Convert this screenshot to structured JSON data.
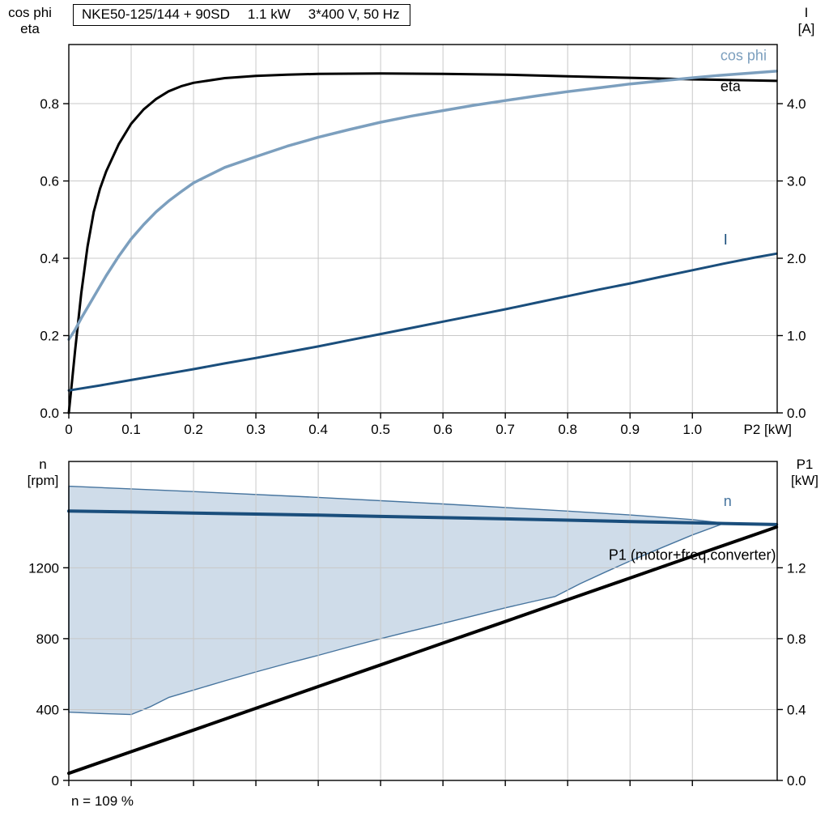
{
  "header": {
    "model": "NKE50-125/144 + 90SD",
    "power": "1.1 kW",
    "voltage": "3*400 V, 50 Hz"
  },
  "footer": {
    "note": "n = 109 %"
  },
  "axis_labels": {
    "upper_left_1": "cos phi",
    "upper_left_2": "eta",
    "upper_right_1": "I",
    "upper_right_2": "[A]",
    "lower_left_1": "n",
    "lower_left_2": "[rpm]",
    "lower_right_1": "P1",
    "lower_right_2": "[kW]"
  },
  "colors": {
    "eta": "#000000",
    "cos_phi": "#7c9fbe",
    "current": "#1a4e7c",
    "speed": "#1a4e7c",
    "p1": "#000000",
    "band_fill": "#cfdce9",
    "band_stroke": "#46749e",
    "grid": "#c8c8c8"
  },
  "chart_data": [
    {
      "id": "top",
      "type": "line",
      "x_axis": {
        "label": "P2 [kW]",
        "range": [
          0,
          1.136
        ],
        "show_tick_labels": true,
        "ticks": [
          {
            "v": 0,
            "t": "0"
          },
          {
            "v": 0.1,
            "t": "0.1"
          },
          {
            "v": 0.2,
            "t": "0.2"
          },
          {
            "v": 0.3,
            "t": "0.3"
          },
          {
            "v": 0.4,
            "t": "0.4"
          },
          {
            "v": 0.5,
            "t": "0.5"
          },
          {
            "v": 0.6,
            "t": "0.6"
          },
          {
            "v": 0.7,
            "t": "0.7"
          },
          {
            "v": 0.8,
            "t": "0.8"
          },
          {
            "v": 0.9,
            "t": "0.9"
          },
          {
            "v": 1.0,
            "t": "1.0"
          }
        ]
      },
      "y_left": {
        "label": "cos phi / eta",
        "range": [
          0,
          0.953
        ],
        "ticks": [
          {
            "v": 0,
            "t": "0.0"
          },
          {
            "v": 0.2,
            "t": "0.2"
          },
          {
            "v": 0.4,
            "t": "0.4"
          },
          {
            "v": 0.6,
            "t": "0.6"
          },
          {
            "v": 0.8,
            "t": "0.8"
          }
        ]
      },
      "y_right": {
        "label": "I [A]",
        "range": [
          0,
          4.765
        ],
        "ticks": [
          {
            "v": 0,
            "t": "0.0"
          },
          {
            "v": 1,
            "t": "1.0"
          },
          {
            "v": 2,
            "t": "2.0"
          },
          {
            "v": 3,
            "t": "3.0"
          },
          {
            "v": 4,
            "t": "4.0"
          }
        ]
      },
      "series": [
        {
          "name": "eta",
          "axis": "left",
          "color": "#000000",
          "width": 3,
          "points": [
            [
              0,
              0
            ],
            [
              0.005,
              0.08
            ],
            [
              0.01,
              0.16
            ],
            [
              0.02,
              0.31
            ],
            [
              0.03,
              0.43
            ],
            [
              0.04,
              0.52
            ],
            [
              0.05,
              0.58
            ],
            [
              0.06,
              0.625
            ],
            [
              0.08,
              0.695
            ],
            [
              0.1,
              0.748
            ],
            [
              0.12,
              0.785
            ],
            [
              0.14,
              0.812
            ],
            [
              0.16,
              0.832
            ],
            [
              0.18,
              0.845
            ],
            [
              0.2,
              0.854
            ],
            [
              0.25,
              0.866
            ],
            [
              0.3,
              0.872
            ],
            [
              0.35,
              0.875
            ],
            [
              0.4,
              0.877
            ],
            [
              0.5,
              0.878
            ],
            [
              0.6,
              0.877
            ],
            [
              0.7,
              0.875
            ],
            [
              0.8,
              0.871
            ],
            [
              0.9,
              0.867
            ],
            [
              1.0,
              0.863
            ],
            [
              1.1,
              0.86
            ],
            [
              1.135,
              0.859
            ]
          ],
          "label": {
            "text": "eta",
            "x": 1.045,
            "y": 0.833,
            "color": "#000000",
            "anchor": "start"
          }
        },
        {
          "name": "cos-phi",
          "axis": "left",
          "color": "#7c9fbe",
          "width": 3.5,
          "points": [
            [
              0,
              0.19
            ],
            [
              0.01,
              0.215
            ],
            [
              0.02,
              0.245
            ],
            [
              0.04,
              0.3
            ],
            [
              0.06,
              0.355
            ],
            [
              0.08,
              0.405
            ],
            [
              0.1,
              0.45
            ],
            [
              0.12,
              0.487
            ],
            [
              0.14,
              0.52
            ],
            [
              0.16,
              0.548
            ],
            [
              0.18,
              0.572
            ],
            [
              0.2,
              0.595
            ],
            [
              0.25,
              0.635
            ],
            [
              0.3,
              0.663
            ],
            [
              0.35,
              0.69
            ],
            [
              0.4,
              0.713
            ],
            [
              0.45,
              0.733
            ],
            [
              0.5,
              0.752
            ],
            [
              0.55,
              0.768
            ],
            [
              0.6,
              0.782
            ],
            [
              0.65,
              0.796
            ],
            [
              0.7,
              0.808
            ],
            [
              0.75,
              0.82
            ],
            [
              0.8,
              0.831
            ],
            [
              0.85,
              0.841
            ],
            [
              0.9,
              0.851
            ],
            [
              0.95,
              0.859
            ],
            [
              1.0,
              0.867
            ],
            [
              1.05,
              0.874
            ],
            [
              1.1,
              0.88
            ],
            [
              1.135,
              0.884
            ]
          ],
          "label": {
            "text": "cos phi",
            "x": 1.045,
            "y": 0.912,
            "color": "#7c9fbe",
            "anchor": "start"
          }
        },
        {
          "name": "current-I",
          "axis": "right",
          "color": "#1a4e7c",
          "width": 3,
          "points": [
            [
              0,
              0.29
            ],
            [
              0.05,
              0.355
            ],
            [
              0.1,
              0.425
            ],
            [
              0.15,
              0.495
            ],
            [
              0.2,
              0.565
            ],
            [
              0.25,
              0.64
            ],
            [
              0.3,
              0.71
            ],
            [
              0.35,
              0.785
            ],
            [
              0.4,
              0.86
            ],
            [
              0.45,
              0.94
            ],
            [
              0.5,
              1.02
            ],
            [
              0.55,
              1.1
            ],
            [
              0.6,
              1.18
            ],
            [
              0.65,
              1.26
            ],
            [
              0.7,
              1.34
            ],
            [
              0.75,
              1.425
            ],
            [
              0.8,
              1.51
            ],
            [
              0.85,
              1.595
            ],
            [
              0.9,
              1.675
            ],
            [
              0.95,
              1.76
            ],
            [
              1.0,
              1.845
            ],
            [
              1.05,
              1.93
            ],
            [
              1.1,
              2.01
            ],
            [
              1.135,
              2.06
            ]
          ],
          "label": {
            "text": "I",
            "x": 1.05,
            "y": 2.18,
            "color": "#1a4e7c",
            "anchor": "start"
          }
        }
      ]
    },
    {
      "id": "bottom",
      "type": "line",
      "x_axis": {
        "label": "",
        "range": [
          0,
          1.136
        ],
        "show_tick_labels": false,
        "ticks": [
          {
            "v": 0,
            "t": ""
          },
          {
            "v": 0.1,
            "t": ""
          },
          {
            "v": 0.2,
            "t": ""
          },
          {
            "v": 0.3,
            "t": ""
          },
          {
            "v": 0.4,
            "t": ""
          },
          {
            "v": 0.5,
            "t": ""
          },
          {
            "v": 0.6,
            "t": ""
          },
          {
            "v": 0.7,
            "t": ""
          },
          {
            "v": 0.8,
            "t": ""
          },
          {
            "v": 0.9,
            "t": ""
          },
          {
            "v": 1.0,
            "t": ""
          }
        ]
      },
      "y_left": {
        "label": "n [rpm]",
        "range": [
          0,
          1800
        ],
        "ticks": [
          {
            "v": 0,
            "t": "0"
          },
          {
            "v": 400,
            "t": "400"
          },
          {
            "v": 800,
            "t": "800"
          },
          {
            "v": 1200,
            "t": "1200"
          }
        ]
      },
      "y_right": {
        "label": "P1 [kW]",
        "range": [
          0,
          1.8
        ],
        "ticks": [
          {
            "v": 0,
            "t": "0.0"
          },
          {
            "v": 0.4,
            "t": "0.4"
          },
          {
            "v": 0.8,
            "t": "0.8"
          },
          {
            "v": 1.2,
            "t": "1.2"
          }
        ]
      },
      "band": {
        "name": "speed-control-range",
        "fill": "#cfdce9",
        "stroke": "#46749e",
        "upper": [
          [
            0,
            1660
          ],
          [
            0.2,
            1630
          ],
          [
            0.4,
            1597
          ],
          [
            0.6,
            1560
          ],
          [
            0.8,
            1520
          ],
          [
            0.9,
            1498
          ],
          [
            1.0,
            1472
          ],
          [
            1.05,
            1452
          ]
        ],
        "lower": [
          [
            0,
            385
          ],
          [
            0.05,
            378
          ],
          [
            0.1,
            372
          ],
          [
            0.13,
            415
          ],
          [
            0.16,
            468
          ],
          [
            0.2,
            510
          ],
          [
            0.25,
            562
          ],
          [
            0.3,
            612
          ],
          [
            0.35,
            660
          ],
          [
            0.4,
            706
          ],
          [
            0.45,
            754
          ],
          [
            0.5,
            800
          ],
          [
            0.55,
            844
          ],
          [
            0.6,
            886
          ],
          [
            0.65,
            930
          ],
          [
            0.7,
            974
          ],
          [
            0.75,
            1014
          ],
          [
            0.78,
            1038
          ],
          [
            0.82,
            1110
          ],
          [
            0.86,
            1175
          ],
          [
            0.9,
            1238
          ],
          [
            0.95,
            1312
          ],
          [
            1.0,
            1385
          ],
          [
            1.05,
            1450
          ]
        ]
      },
      "series": [
        {
          "name": "speed-n",
          "axis": "left",
          "color": "#1a4e7c",
          "width": 4,
          "points": [
            [
              0,
              1520
            ],
            [
              0.1,
              1515
            ],
            [
              0.2,
              1509
            ],
            [
              0.3,
              1503
            ],
            [
              0.4,
              1497
            ],
            [
              0.5,
              1490
            ],
            [
              0.6,
              1483
            ],
            [
              0.7,
              1476
            ],
            [
              0.8,
              1469
            ],
            [
              0.9,
              1461
            ],
            [
              1.0,
              1454
            ],
            [
              1.05,
              1450
            ],
            [
              1.135,
              1444
            ]
          ],
          "label": {
            "text": "n",
            "x": 1.05,
            "y": 1548,
            "color": "#46749e",
            "anchor": "start"
          }
        },
        {
          "name": "p1-input-power",
          "axis": "right",
          "color": "#000000",
          "width": 4,
          "points": [
            [
              0,
              0.04
            ],
            [
              0.1,
              0.162
            ],
            [
              0.2,
              0.284
            ],
            [
              0.3,
              0.407
            ],
            [
              0.4,
              0.53
            ],
            [
              0.5,
              0.652
            ],
            [
              0.6,
              0.775
            ],
            [
              0.7,
              0.897
            ],
            [
              0.8,
              1.02
            ],
            [
              0.9,
              1.142
            ],
            [
              1.0,
              1.265
            ],
            [
              1.1,
              1.387
            ],
            [
              1.135,
              1.43
            ]
          ],
          "label": {
            "text": "P1 (motor+freq.converter)",
            "x": 1.134,
            "y": 1.245,
            "color": "#000000",
            "anchor": "end"
          }
        }
      ]
    }
  ]
}
